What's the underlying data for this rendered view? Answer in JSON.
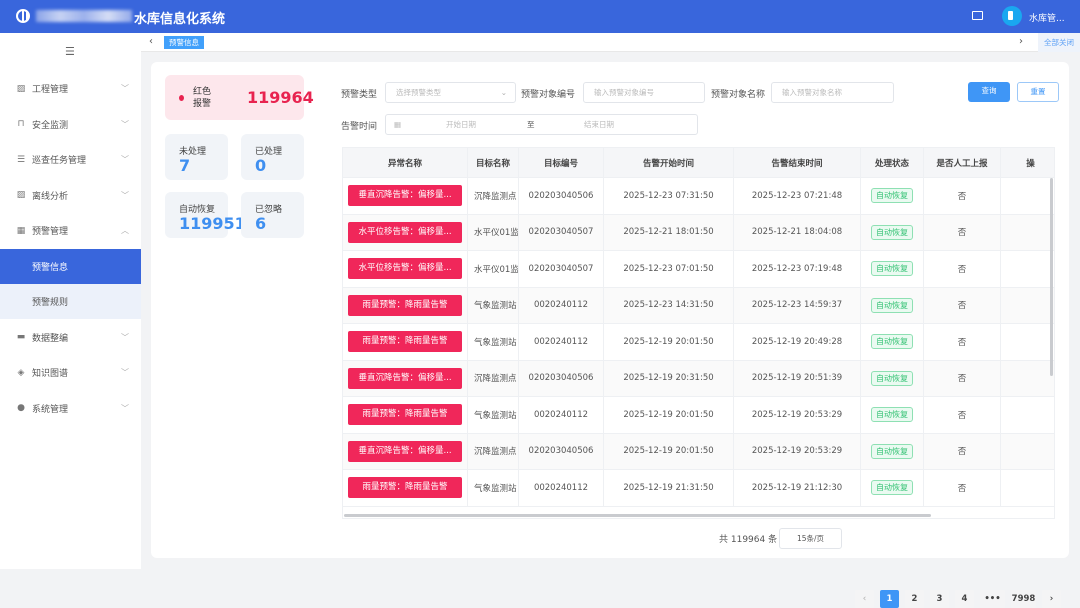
{
  "header": {
    "title": "水库信息化系统",
    "user": "水库管...",
    "icons": [
      "logo-icon",
      "monitor-icon",
      "avatar"
    ]
  },
  "sidebar": {
    "items": [
      {
        "label": "工程管理",
        "icon": "chart-icon"
      },
      {
        "label": "安全监测",
        "icon": "lock-icon"
      },
      {
        "label": "巡查任务管理",
        "icon": "list-icon"
      },
      {
        "label": "离线分析",
        "icon": "chart-icon"
      },
      {
        "label": "预警管理",
        "icon": "grid-icon",
        "expanded": true
      },
      {
        "label": "预警信息",
        "sub": true,
        "active": true
      },
      {
        "label": "预警规则",
        "sub": true
      },
      {
        "label": "数据整编",
        "icon": "database-icon"
      },
      {
        "label": "知识图谱",
        "icon": "layers-icon"
      },
      {
        "label": "系统管理",
        "icon": "user-icon"
      }
    ]
  },
  "tabs": {
    "items": [
      "预警信息"
    ],
    "close_all": "全部关闭"
  },
  "stats": {
    "red_label": "红色报警",
    "red_value": "119964",
    "unhandled_label": "未处理",
    "unhandled": "7",
    "handled_label": "已处理",
    "handled": "0",
    "auto_label": "自动恢复",
    "auto": "119951",
    "ignored_label": "已忽略",
    "ignored": "6"
  },
  "filters": {
    "type_label": "预警类型",
    "type_placeholder": "选择预警类型",
    "code_label": "预警对象编号",
    "code_placeholder": "输入预警对象编号",
    "name_label": "预警对象名称",
    "name_placeholder": "输入预警对象名称",
    "time_label": "告警时间",
    "start_placeholder": "开始日期",
    "to": "至",
    "end_placeholder": "结束日期",
    "query": "查询",
    "reset": "重置"
  },
  "table": {
    "headers": [
      "异常名称",
      "目标名称",
      "目标编号",
      "告警开始时间",
      "告警结束时间",
      "处理状态",
      "是否人工上报",
      "操"
    ],
    "rows": [
      [
        "垂直沉降告警：偏移量...",
        "沉降监测点",
        "020203040506",
        "2025-12-23 07:31:50",
        "2025-12-23 07:21:48",
        "自动恢复",
        "否"
      ],
      [
        "水平位移告警：偏移量...",
        "水平仪01监",
        "020203040507",
        "2025-12-21 18:01:50",
        "2025-12-21 18:04:08",
        "自动恢复",
        "否"
      ],
      [
        "水平位移告警：偏移量...",
        "水平仪01监",
        "020203040507",
        "2025-12-23 07:01:50",
        "2025-12-23 07:19:48",
        "自动恢复",
        "否"
      ],
      [
        "雨量预警：降雨量告警",
        "气象监测站",
        "0020240112",
        "2025-12-23 14:31:50",
        "2025-12-23 14:59:37",
        "自动恢复",
        "否"
      ],
      [
        "雨量预警：降雨量告警",
        "气象监测站",
        "0020240112",
        "2025-12-19 20:01:50",
        "2025-12-19 20:49:28",
        "自动恢复",
        "否"
      ],
      [
        "垂直沉降告警：偏移量...",
        "沉降监测点",
        "020203040506",
        "2025-12-19 20:31:50",
        "2025-12-19 20:51:39",
        "自动恢复",
        "否"
      ],
      [
        "雨量预警：降雨量告警",
        "气象监测站",
        "0020240112",
        "2025-12-19 20:01:50",
        "2025-12-19 20:53:29",
        "自动恢复",
        "否"
      ],
      [
        "垂直沉降告警：偏移量...",
        "沉降监测点",
        "020203040506",
        "2025-12-19 20:01:50",
        "2025-12-19 20:53:29",
        "自动恢复",
        "否"
      ],
      [
        "雨量预警：降雨量告警",
        "气象监测站",
        "0020240112",
        "2025-12-19 21:31:50",
        "2025-12-19 21:12:30",
        "自动恢复",
        "否"
      ]
    ]
  },
  "pagination": {
    "total": "共 119964 条",
    "page_size": "15条/页",
    "pages": [
      "1",
      "2",
      "3",
      "4",
      "•••",
      "7998"
    ],
    "current": "1"
  },
  "colors": {
    "header": "#3966dc",
    "alarm": "#f0275a",
    "primary": "#3f96f6",
    "success": "#34c274"
  }
}
